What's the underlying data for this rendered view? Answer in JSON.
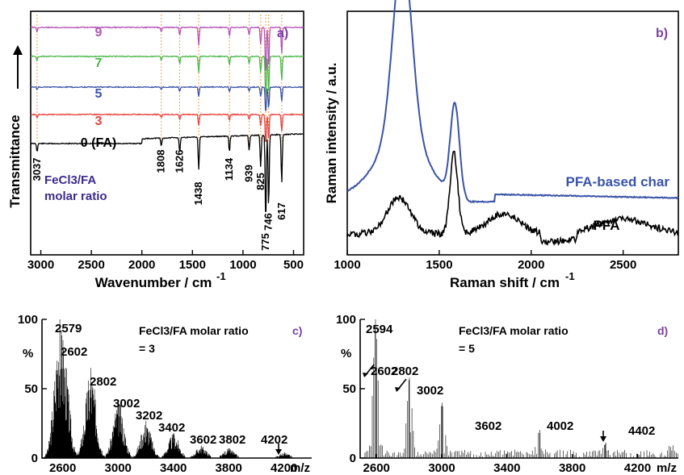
{
  "chart_data": [
    {
      "panel": "a)",
      "type": "line",
      "xlabel": "Wavenumber / cm",
      "xlabel_sup": "-1",
      "ylabel": "Transmittance",
      "xlim": [
        3100,
        400
      ],
      "xticks": [
        3000,
        2500,
        2000,
        1500,
        1000,
        500
      ],
      "series": [
        {
          "name": "0 (FA)",
          "color": "#000000"
        },
        {
          "name": "3",
          "color": "#e8413c"
        },
        {
          "name": "5",
          "color": "#3a54a8"
        },
        {
          "name": "7",
          "color": "#4cb84a"
        },
        {
          "name": "9",
          "color": "#b455b8"
        }
      ],
      "peaks": [
        {
          "x": 3037,
          "label": "3037"
        },
        {
          "x": 1808,
          "label": "1808"
        },
        {
          "x": 1626,
          "label": "1626"
        },
        {
          "x": 1438,
          "label": "1438"
        },
        {
          "x": 1134,
          "label": "1134"
        },
        {
          "x": 939,
          "label": "939"
        },
        {
          "x": 825,
          "label": "825"
        },
        {
          "x": 775,
          "label": "775"
        },
        {
          "x": 746,
          "label": "746"
        },
        {
          "x": 617,
          "label": "617"
        }
      ],
      "annotation_lines": [
        "FeCl3/FA",
        "molar ratio"
      ]
    },
    {
      "panel": "b)",
      "type": "line",
      "xlabel": "Raman shift / cm",
      "xlabel_sup": "-1",
      "ylabel": "Raman intensity / a.u.",
      "xlim": [
        1000,
        2800
      ],
      "xticks": [
        1000,
        1500,
        2000,
        2500
      ],
      "series": [
        {
          "name": "PFA-based char",
          "color": "#3a54a8",
          "peaks": [
            1300,
            1585
          ]
        },
        {
          "name": "PFA",
          "color": "#000000",
          "peaks": [
            1280,
            1580
          ]
        }
      ]
    },
    {
      "panel": "c)",
      "type": "bar",
      "xlabel": "m/z",
      "ylabel": "%",
      "xlim": [
        2450,
        4400
      ],
      "ylim": [
        0,
        100
      ],
      "xticks": [
        2600,
        3000,
        3400,
        3800,
        4200
      ],
      "yticks": [
        0,
        50,
        100
      ],
      "note_lines": [
        "FeCl3/FA molar ratio",
        "= 3"
      ],
      "labeled_peaks": [
        {
          "x": 2579,
          "y": 100,
          "label": "2579"
        },
        {
          "x": 2602,
          "y": 85,
          "label": "2602"
        },
        {
          "x": 2802,
          "y": 65,
          "label": "2802"
        },
        {
          "x": 3002,
          "y": 42,
          "label": "3002"
        },
        {
          "x": 3202,
          "y": 27,
          "label": "3202"
        },
        {
          "x": 3402,
          "y": 18,
          "label": "3402"
        },
        {
          "x": 3602,
          "y": 9,
          "label": "3602"
        },
        {
          "x": 3802,
          "y": 7,
          "label": "3802"
        },
        {
          "x": 4202,
          "y": 4,
          "label": "4202"
        }
      ]
    },
    {
      "panel": "d)",
      "type": "bar",
      "xlabel": "m/z",
      "ylabel": "%",
      "xlim": [
        2500,
        4450
      ],
      "ylim": [
        0,
        100
      ],
      "xticks": [
        2600,
        3000,
        3400,
        3800,
        4200
      ],
      "yticks": [
        0,
        50,
        100
      ],
      "note_lines": [
        "FeCl3/FA molar ratio",
        "= 5"
      ],
      "labeled_peaks": [
        {
          "x": 2594,
          "y": 100,
          "label": "2594"
        },
        {
          "x": 2602,
          "y": 62,
          "label": "2602"
        },
        {
          "x": 2802,
          "y": 58,
          "label": "2802"
        },
        {
          "x": 3002,
          "y": 40,
          "label": "3002"
        },
        {
          "x": 3602,
          "y": 18,
          "label": "3602"
        },
        {
          "x": 4002,
          "y": 10,
          "label": "4002"
        },
        {
          "x": 4402,
          "y": 8,
          "label": "4402"
        }
      ]
    }
  ],
  "colors": {
    "panel_letter": "#7a3fa0",
    "note": "#3d2a8a"
  }
}
